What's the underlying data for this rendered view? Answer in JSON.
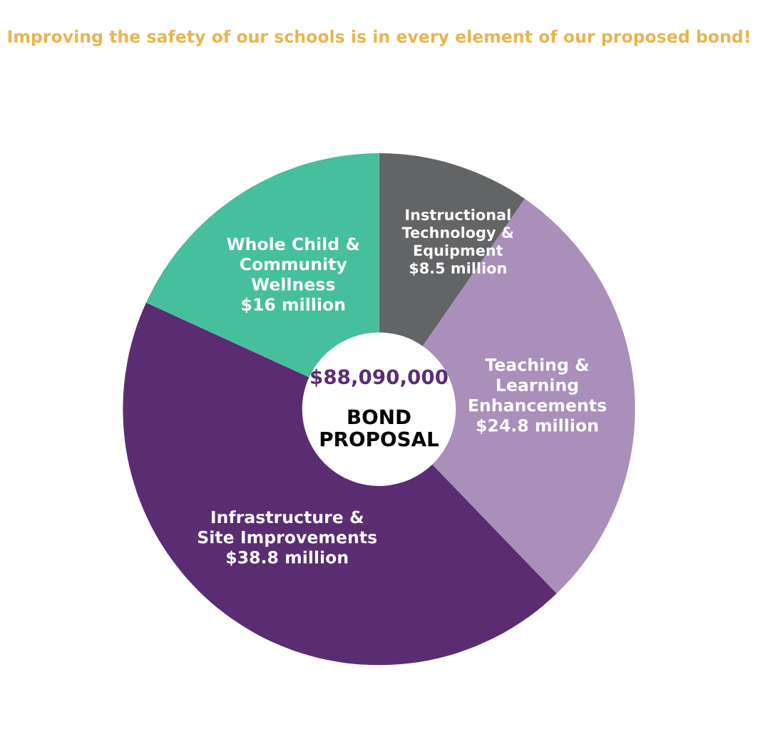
{
  "chart_data": {
    "type": "donut",
    "title": "Improving the safety of our schools is in every element of our proposed bond!",
    "categories": [
      "Instructional\nTechnology &\nEquipment",
      "Teaching &\nLearning\nEnhancements",
      "Infrastructure &\nSite Improvements",
      "Whole Child &\nCommunity\nWellness"
    ],
    "values": [
      8.5,
      24.8,
      38.8,
      16
    ],
    "value_labels": [
      "$8.5 million",
      "$24.8 million",
      "$38.8 million",
      "$16 million"
    ],
    "colors": [
      "#636466",
      "#a98fba",
      "#5a2d72",
      "#45bf9c"
    ],
    "annotations": [
      "$88,090,000",
      "BOND\nPROPOSAL"
    ],
    "legend": false
  }
}
